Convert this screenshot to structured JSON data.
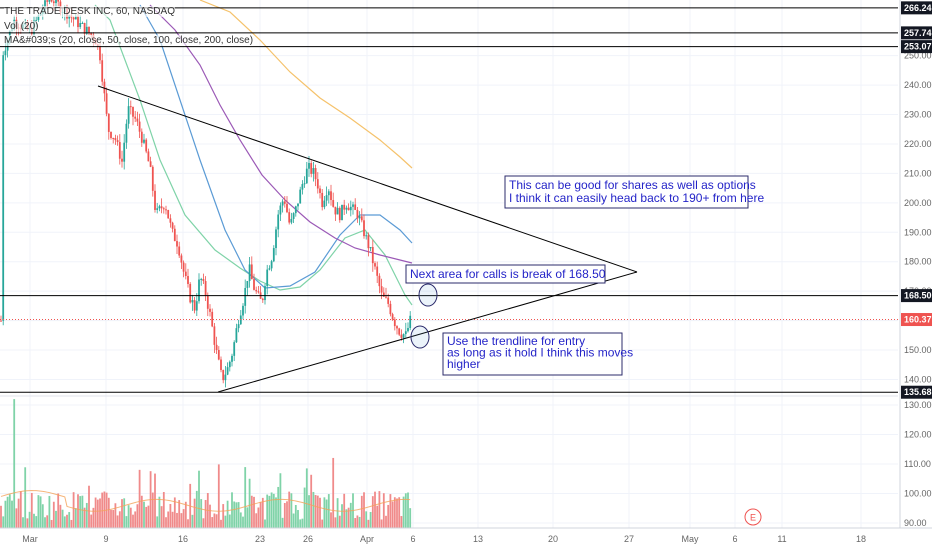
{
  "header": {
    "symbol_line": "THE TRADE DESK INC, 60, NASDAQ",
    "volume_line": "Vol (20)",
    "ma_line": "MA&#039;s (20, close, 50, close, 100, close, 200, close)"
  },
  "chart_data": {
    "type": "candlestick",
    "title": "THE TRADE DESK INC, 60, NASDAQ",
    "y_axis": {
      "ylim": [
        135,
        272
      ],
      "ticks": [
        140,
        150,
        160,
        170,
        180,
        190,
        200,
        210,
        220,
        230,
        240,
        250
      ]
    },
    "x_axis": {
      "labels": [
        "Mar",
        "9",
        "16",
        "23",
        "26",
        "Apr",
        "6",
        "13",
        "20",
        "27",
        "May",
        "6",
        "11",
        "18"
      ]
    },
    "price_levels": [
      {
        "value": 266.24,
        "label": "266.24",
        "style": "solid-dark"
      },
      {
        "value": 257.74,
        "label": "257.74",
        "style": "solid-dark"
      },
      {
        "value": 253.07,
        "label": "253.07",
        "style": "solid-dark"
      },
      {
        "value": 168.5,
        "label": "168.50",
        "style": "solid-dark"
      },
      {
        "value": 135.68,
        "label": "135.68",
        "style": "solid-dark"
      },
      {
        "value": 160.37,
        "label": "160.37",
        "style": "dotted-red",
        "current": true
      }
    ],
    "moving_averages": [
      {
        "name": "MA 20",
        "color": "#7fd3a8"
      },
      {
        "name": "MA 50",
        "color": "#5b9bd5"
      },
      {
        "name": "MA 100",
        "color": "#9b59b6"
      },
      {
        "name": "MA 200",
        "color": "#f5c26b"
      }
    ],
    "volume_axis": {
      "ticks": [
        90,
        100,
        110,
        120,
        130
      ],
      "ylim": [
        88,
        136
      ]
    },
    "annotations": [
      {
        "text_lines": [
          "This can be good for shares as well as options",
          "I think it can easily head back to 190+ from here"
        ]
      },
      {
        "text_lines": [
          "Next area for calls is break of 168.50"
        ]
      },
      {
        "text_lines": [
          "Use the trendline for entry",
          "as long as it hold I think this moves",
          "higher"
        ]
      }
    ],
    "event_badge": "E"
  },
  "colors": {
    "up": "#26a69a",
    "down": "#ef5350",
    "trendline": "#000000",
    "annotation_text": "#2424c8",
    "current_price": "#ef5350"
  }
}
